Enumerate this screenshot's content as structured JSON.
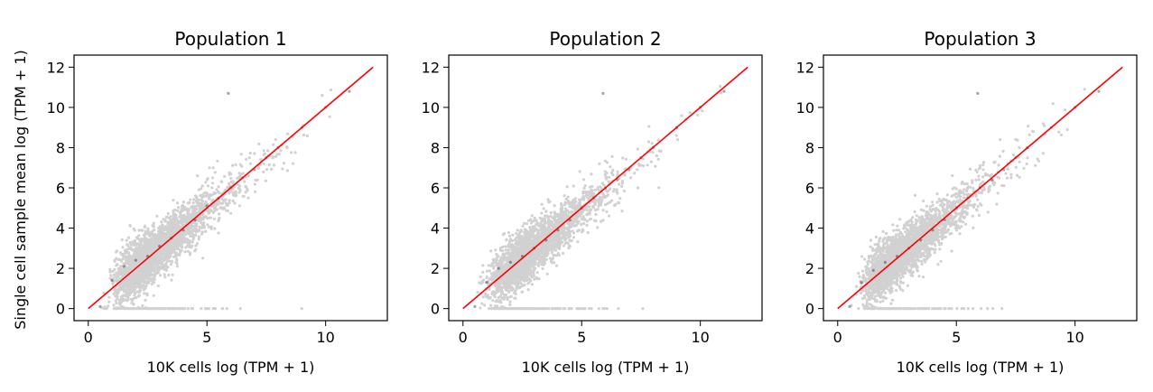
{
  "figure": {
    "ylabel": "Single cell sample mean log (TPM + 1)"
  },
  "chart_data": [
    {
      "type": "scatter",
      "title": "Population 1",
      "xlabel": "10K cells log (TPM + 1)",
      "ylabel": "Single cell sample mean log (TPM + 1)",
      "xlim": [
        -0.6,
        12.6
      ],
      "ylim": [
        -0.6,
        12.6
      ],
      "xticks": [
        0,
        5,
        10
      ],
      "yticks": [
        0,
        2,
        4,
        6,
        8,
        10,
        12
      ],
      "grid": false,
      "point_color": "#000000",
      "point_opacity": 0.18,
      "reference_line": {
        "x": [
          0,
          12
        ],
        "y": [
          0,
          12
        ],
        "color": "#ff0000"
      },
      "points_approx": [
        [
          0.5,
          0.1
        ],
        [
          1,
          1.4
        ],
        [
          1.5,
          2.1
        ],
        [
          2,
          2.4
        ],
        [
          2.5,
          2.6
        ],
        [
          3,
          3.1
        ],
        [
          3.5,
          3.5
        ],
        [
          4,
          3.9
        ],
        [
          4.5,
          4.4
        ],
        [
          5,
          5.1
        ],
        [
          5.5,
          5.5
        ],
        [
          6,
          6
        ],
        [
          6.5,
          6.5
        ],
        [
          7,
          6.9
        ],
        [
          7.5,
          7.5
        ],
        [
          8,
          8
        ],
        [
          9,
          9
        ],
        [
          10,
          10
        ],
        [
          11,
          10.8
        ],
        [
          5.9,
          10.7
        ]
      ]
    },
    {
      "type": "scatter",
      "title": "Population 2",
      "xlabel": "10K cells log (TPM + 1)",
      "xlim": [
        -0.6,
        12.6
      ],
      "ylim": [
        -0.6,
        12.6
      ],
      "xticks": [
        0,
        5,
        10
      ],
      "yticks": [
        0,
        2,
        4,
        6,
        8,
        10,
        12
      ],
      "grid": false,
      "point_color": "#000000",
      "point_opacity": 0.18,
      "reference_line": {
        "x": [
          0,
          12
        ],
        "y": [
          0,
          12
        ],
        "color": "#ff0000"
      },
      "points_approx": [
        [
          0.5,
          0.1
        ],
        [
          1,
          1.3
        ],
        [
          1.5,
          2
        ],
        [
          2,
          2.3
        ],
        [
          2.5,
          2.6
        ],
        [
          3,
          3
        ],
        [
          3.5,
          3.4
        ],
        [
          4,
          3.9
        ],
        [
          4.5,
          4.4
        ],
        [
          5,
          5
        ],
        [
          5.5,
          5.5
        ],
        [
          6,
          6
        ],
        [
          6.5,
          6.4
        ],
        [
          7,
          6.9
        ],
        [
          7.5,
          7.5
        ],
        [
          8,
          8
        ],
        [
          9,
          9
        ],
        [
          10,
          10
        ],
        [
          11,
          10.8
        ],
        [
          5.9,
          10.7
        ]
      ]
    },
    {
      "type": "scatter",
      "title": "Population 3",
      "xlabel": "10K cells log (TPM + 1)",
      "xlim": [
        -0.6,
        12.6
      ],
      "ylim": [
        -0.6,
        12.6
      ],
      "xticks": [
        0,
        5,
        10
      ],
      "yticks": [
        0,
        2,
        4,
        6,
        8,
        10,
        12
      ],
      "grid": false,
      "point_color": "#000000",
      "point_opacity": 0.18,
      "reference_line": {
        "x": [
          0,
          12
        ],
        "y": [
          0,
          12
        ],
        "color": "#ff0000"
      },
      "points_approx": [
        [
          0.5,
          0.1
        ],
        [
          1,
          1.3
        ],
        [
          1.5,
          1.9
        ],
        [
          2,
          2.3
        ],
        [
          2.5,
          2.6
        ],
        [
          3,
          3
        ],
        [
          3.5,
          3.4
        ],
        [
          4,
          3.9
        ],
        [
          4.5,
          4.4
        ],
        [
          5,
          5
        ],
        [
          5.5,
          5.5
        ],
        [
          6,
          6
        ],
        [
          6.5,
          6.4
        ],
        [
          7,
          6.9
        ],
        [
          7.5,
          7.5
        ],
        [
          8,
          8
        ],
        [
          9,
          9
        ],
        [
          10,
          10
        ],
        [
          11,
          10.8
        ],
        [
          5.9,
          10.7
        ]
      ]
    }
  ]
}
